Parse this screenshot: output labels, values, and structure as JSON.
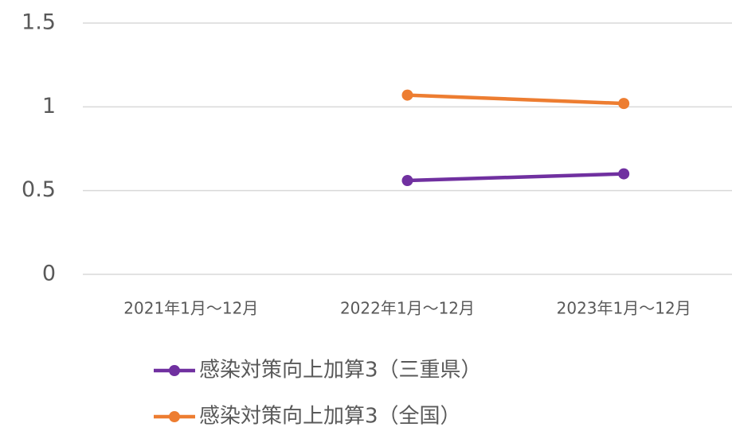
{
  "chart_data": {
    "type": "line",
    "categories": [
      "2021年1月～12月",
      "2022年1月～12月",
      "2023年1月～12月"
    ],
    "series": [
      {
        "name": "感染対策向上加算3（三重県）",
        "color": "#7030a0",
        "values": [
          null,
          0.56,
          0.6
        ]
      },
      {
        "name": "感染対策向上加算3（全国）",
        "color": "#ed7d31",
        "values": [
          null,
          1.07,
          1.02
        ]
      }
    ],
    "ylim": [
      0,
      1.5
    ],
    "yticks": [
      0,
      0.5,
      1,
      1.5
    ],
    "grid": true,
    "legend": "bottom"
  }
}
